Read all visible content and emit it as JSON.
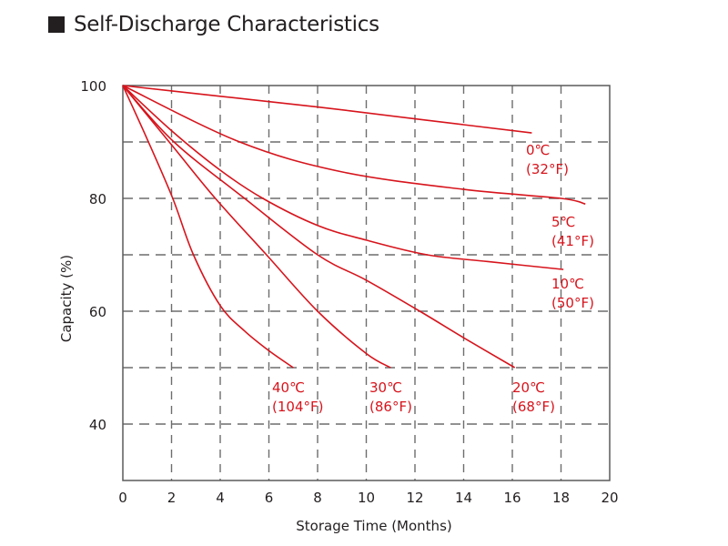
{
  "chart_data": {
    "type": "line",
    "title": "Self-Discharge Characteristics",
    "xlabel": "Storage Time (Months)",
    "ylabel": "Capacity (%)",
    "xlim": [
      0,
      20
    ],
    "ylim": [
      30,
      100
    ],
    "x_ticks": [
      0,
      2,
      4,
      6,
      8,
      10,
      12,
      14,
      16,
      18,
      20
    ],
    "y_ticks": [
      40,
      60,
      80,
      100
    ],
    "grid": true,
    "legend": "none (direct labels at line ends)",
    "series_color": "#d7141c",
    "series": [
      {
        "name": "0℃ (32°F)",
        "label_c": "0℃",
        "label_f": "(32°F)",
        "points": [
          [
            0,
            100
          ],
          [
            4,
            98.1
          ],
          [
            8,
            96.2
          ],
          [
            12,
            94.1
          ],
          [
            16.8,
            91.6
          ]
        ]
      },
      {
        "name": "5℃ (41°F)",
        "label_c": "5℃",
        "label_f": "(41°F)",
        "points": [
          [
            0,
            100
          ],
          [
            4.8,
            90
          ],
          [
            9,
            84.7
          ],
          [
            14,
            81.6
          ],
          [
            18,
            80
          ],
          [
            19,
            79
          ]
        ]
      },
      {
        "name": "10℃ (50°F)",
        "label_c": "10℃",
        "label_f": "(50°F)",
        "points": [
          [
            0,
            100
          ],
          [
            2,
            92
          ],
          [
            4,
            85
          ],
          [
            5.75,
            80
          ],
          [
            8,
            75.2
          ],
          [
            10,
            72.6
          ],
          [
            12.5,
            70
          ],
          [
            15,
            68.8
          ],
          [
            18.1,
            67.4
          ]
        ]
      },
      {
        "name": "20℃ (68°F)",
        "label_c": "20℃",
        "label_f": "(68°F)",
        "points": [
          [
            0,
            100
          ],
          [
            2.1,
            90
          ],
          [
            5,
            80
          ],
          [
            8,
            70
          ],
          [
            10,
            65.5
          ],
          [
            12.2,
            60
          ],
          [
            14,
            55.3
          ],
          [
            16.1,
            50
          ]
        ]
      },
      {
        "name": "30℃ (86°F)",
        "label_c": "30℃",
        "label_f": "(86°F)",
        "points": [
          [
            0,
            100
          ],
          [
            2,
            89.5
          ],
          [
            3.8,
            80
          ],
          [
            5.9,
            70
          ],
          [
            8,
            60
          ],
          [
            10,
            52.5
          ],
          [
            11,
            50
          ]
        ]
      },
      {
        "name": "40℃ (104°F)",
        "label_c": "40℃",
        "label_f": "(104°F)",
        "points": [
          [
            0,
            100
          ],
          [
            1,
            90.5
          ],
          [
            2.05,
            80
          ],
          [
            2.9,
            70
          ],
          [
            4,
            61
          ],
          [
            5,
            56.5
          ],
          [
            6,
            53
          ],
          [
            7,
            50
          ]
        ]
      }
    ]
  }
}
